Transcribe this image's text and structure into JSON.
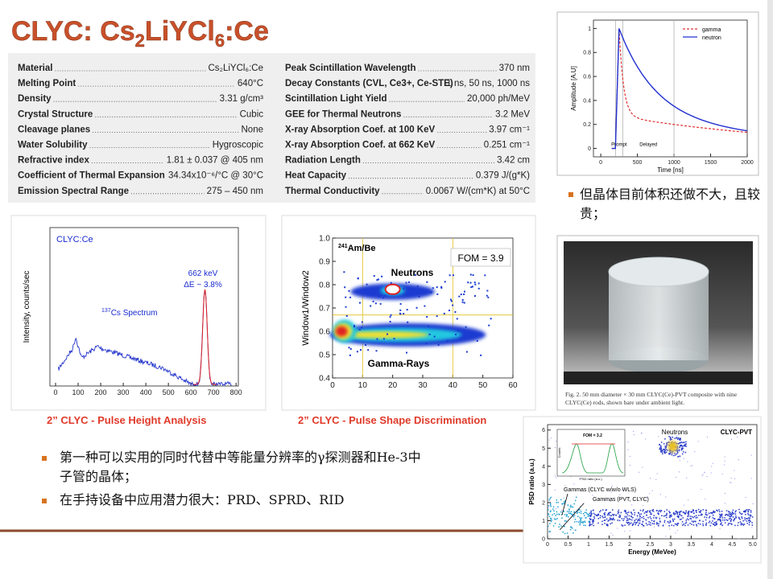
{
  "title": {
    "parts": [
      "CLYC: Cs",
      "2",
      "LiYCl",
      "6",
      ":Ce"
    ]
  },
  "properties": {
    "left": [
      [
        "Material",
        "Cs₂LiYCl₆:Ce"
      ],
      [
        "Melting Point",
        "640°C"
      ],
      [
        "Density",
        "3.31 g/cm³"
      ],
      [
        "Crystal Structure",
        "Cubic"
      ],
      [
        "Cleavage planes",
        "None"
      ],
      [
        "Water Solubility",
        "Hygroscopic"
      ],
      [
        "Refractive index",
        "1.81 ± 0.037 @ 405 nm"
      ],
      [
        "Coefficient of Thermal Expansion",
        "34.34x10⁻⁶/°C @ 30°C"
      ],
      [
        "Emission Spectral Range",
        "275 – 450 nm"
      ]
    ],
    "right": [
      [
        "Peak Scintillation Wavelength",
        "370 nm"
      ],
      [
        "Decay Constants (CVL, Ce3+, Ce-STE)",
        "1 ns, 50 ns, 1000 ns"
      ],
      [
        "Scintillation Light Yield",
        "20,000 ph/MeV"
      ],
      [
        "GEE for Thermal Neutrons",
        "3.2 MeV"
      ],
      [
        "X-ray Absorption Coef. at 100 KeV",
        "3.97 cm⁻¹"
      ],
      [
        "X-ray Absorption Coef. at 662 KeV",
        "0.251 cm⁻¹"
      ],
      [
        "Radiation Length",
        "3.42 cm"
      ],
      [
        "Heat Capacity",
        "0.379 J/(g*K)"
      ],
      [
        "Thermal Conductivity",
        "0.0067 W/(cm*K) at 50°C"
      ]
    ]
  },
  "figures": {
    "decay": {
      "xlabel": "Time [ns]",
      "ylabel": "Amplitude [A.U]",
      "xlim": [
        -100,
        2000
      ],
      "ylim": [
        -0.07,
        1.07
      ],
      "xticks": [
        0,
        500,
        1000,
        1500,
        2000
      ],
      "yticks": [
        0,
        0.2,
        0.4,
        0.6,
        0.8,
        1
      ],
      "legend": [
        "gamma",
        "neutron"
      ],
      "annotations": [
        "Prompt",
        "Delayed"
      ]
    },
    "spectrum": {
      "ylabel": "Intensity, counts/sec",
      "xlim": [
        -25,
        810
      ],
      "xticks": [
        0,
        100,
        200,
        300,
        400,
        500,
        600,
        700,
        800
      ],
      "label": "CLYC:Ce",
      "peak": [
        "662 keV",
        "ΔE ~ 3.8%"
      ],
      "source": [
        "137",
        "Cs Spectrum"
      ],
      "caption": "2” CLYC - Pulse Height Analysis"
    },
    "psd": {
      "ylabel": "Window1/Window2",
      "xlim": [
        0,
        60
      ],
      "ylim": [
        0.4,
        1.0
      ],
      "xticks": [
        0,
        10,
        20,
        30,
        40,
        50,
        60
      ],
      "yticks": [
        0.4,
        0.5,
        0.6,
        0.7,
        0.8,
        0.9,
        {
          "value": 1.0,
          "label": "1.0"
        }
      ],
      "source": [
        "241",
        "Am/Be"
      ],
      "fom": "FOM = 3.9",
      "neutrons": "Neutrons",
      "gammas": "Gamma-Rays",
      "caption": "2” CLYC - Pulse Shape Discrimination"
    },
    "psd_energy": {
      "xlabel": "Energy (MeVee)",
      "ylabel": "PSD ratio (a.u.)",
      "xlim": [
        0,
        5.1
      ],
      "ylim": [
        0,
        6.3
      ],
      "xticks": [
        0,
        0.5,
        1,
        1.5,
        2,
        2.5,
        3,
        3.5,
        4,
        4.5,
        {
          "value": 5,
          "label": "5.0"
        }
      ],
      "yticks": [
        0,
        1,
        2,
        3,
        4,
        5,
        6
      ],
      "neutrons": "Neutrons",
      "tag": "CLYC-PVT",
      "gammas": [
        "Gammas (CLYC w/w/o WLS)",
        "Gammas (PVT, CLYC)"
      ],
      "inset": {
        "fom": "FOM = 3.2",
        "ylabel": "Counts",
        "xlabel": "PSD ratio (a.u.)"
      }
    }
  },
  "photo": {
    "caption": "Fig. 2.   50 mm diameter × 30 mm CLYC(Ce)-PVT composite with nine CLYC(Ce) rods, shown bare under ambient light."
  },
  "bullets": {
    "right": [
      "但晶体目前体积还做不大，且较贵；"
    ],
    "left": [
      "第一种可以实用的同时代替中等能量分辨率的γ探测器和He-3中子管的晶体；",
      "在手持设备中应用潜力很大：PRD、SPRD、RID"
    ]
  }
}
